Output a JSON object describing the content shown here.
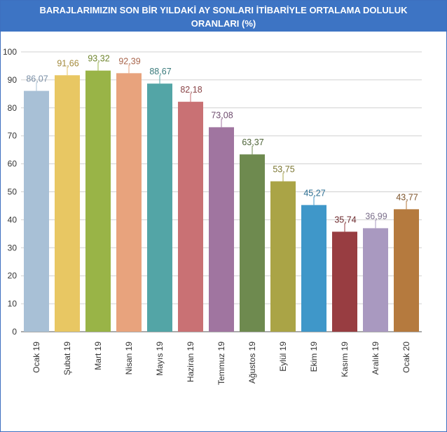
{
  "header": {
    "title_line1": "BARAJLARIMIZIN SON BİR YILDAKİ AY SONLARI İTİBARİYLE ORTALAMA DOLULUK",
    "title_line2": "ORANLARI (%)"
  },
  "chart_data": {
    "type": "bar",
    "title": "BARAJLARIMIZIN SON BİR YILDAKİ AY SONLARI İTİBARİYLE ORTALAMA DOLULUK ORANLARI (%)",
    "xlabel": "",
    "ylabel": "",
    "ylim": [
      0,
      100
    ],
    "yticks": [
      0,
      10,
      20,
      30,
      40,
      50,
      60,
      70,
      80,
      90,
      100
    ],
    "grid": true,
    "categories": [
      "Ocak 19",
      "Şubat 19",
      "Mart 19",
      "Nisan 19",
      "Mayıs 19",
      "Haziran 19",
      "Temmuz 19",
      "Ağustos 19",
      "Eylül 19",
      "Ekim 19",
      "Kasım 19",
      "Aralık 19",
      "Ocak 20"
    ],
    "values": [
      86.07,
      91.66,
      93.32,
      92.39,
      88.67,
      82.18,
      73.08,
      63.37,
      53.75,
      45.27,
      35.74,
      36.99,
      43.77
    ],
    "value_labels": [
      "86,07",
      "91,66",
      "93,32",
      "92,39",
      "88,67",
      "82,18",
      "73,08",
      "63,37",
      "53,75",
      "45,27",
      "35,74",
      "36,99",
      "43,77"
    ],
    "bar_colors": [
      "#a8c0d6",
      "#e8c763",
      "#99b447",
      "#e8a37d",
      "#53a5a6",
      "#c97174",
      "#a075a0",
      "#6e8a4f",
      "#aaa446",
      "#3f97c9",
      "#983d41",
      "#a999c0",
      "#b57a3e"
    ],
    "label_colors": [
      "#7a8fa6",
      "#a38a3b",
      "#6e842c",
      "#a8654b",
      "#3a7a7b",
      "#8a4548",
      "#6e4c6e",
      "#4c6236",
      "#7a7530",
      "#2b6e92",
      "#6e2a2d",
      "#7a6e8a",
      "#7c532a"
    ]
  }
}
